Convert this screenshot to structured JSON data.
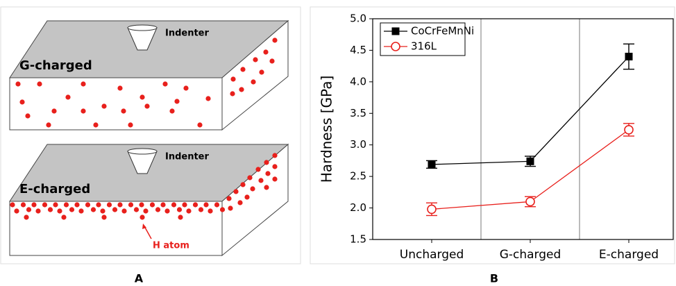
{
  "diagram": {
    "panels": [
      {
        "indenter": "Indenter",
        "label": "G-charged"
      },
      {
        "indenter": "Indenter",
        "label": "E-charged",
        "annotation": "H atom"
      }
    ],
    "panel_labels": [
      "A",
      "B"
    ]
  },
  "chart_data": {
    "type": "line",
    "ylabel": "Hardness [GPa]",
    "categories": [
      "Uncharged",
      "G-charged",
      "E-charged"
    ],
    "series": [
      {
        "name": "CoCrFeMnNi",
        "color": "#000000",
        "marker": "square",
        "values": [
          2.69,
          2.74,
          4.4
        ],
        "errors": [
          0.06,
          0.08,
          0.2
        ]
      },
      {
        "name": "316L",
        "color": "#e8201c",
        "marker": "open-circle",
        "values": [
          1.98,
          2.1,
          3.24
        ],
        "errors": [
          0.1,
          0.08,
          0.1
        ]
      }
    ],
    "ylim": [
      1.5,
      5.0
    ],
    "yticks": [
      1.5,
      {
        "value": 2,
        "label": "2.0"
      },
      2.5,
      {
        "value": 3,
        "label": "3.0"
      },
      3.5,
      {
        "value": 4,
        "label": "4.0"
      },
      4.5,
      {
        "value": 5,
        "label": "5.0"
      }
    ],
    "category_separators": true,
    "legend": "upper-left"
  }
}
